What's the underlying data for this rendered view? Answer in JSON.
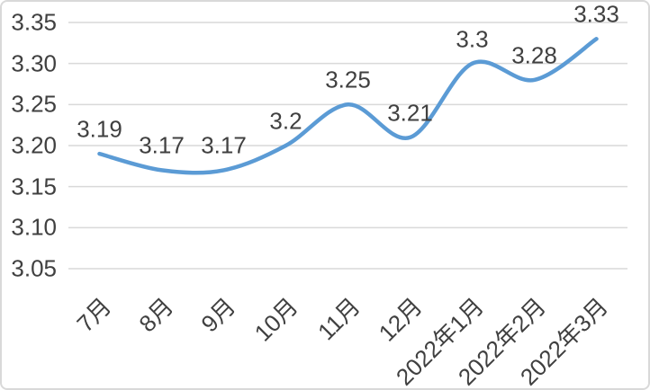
{
  "chart_data": {
    "type": "line",
    "title": "",
    "xlabel": "",
    "ylabel": "",
    "categories": [
      "7月",
      "8月",
      "9月",
      "10月",
      "11月",
      "12月",
      "2022年1月",
      "2022年2月",
      "2022年3月"
    ],
    "values": [
      3.19,
      3.17,
      3.17,
      3.2,
      3.25,
      3.21,
      3.3,
      3.28,
      3.33
    ],
    "point_labels": [
      "3.19",
      "3.17",
      "3.17",
      "3.2",
      "3.25",
      "3.21",
      "3.3",
      "3.28",
      "3.33"
    ],
    "ytick_values": [
      3.05,
      3.1,
      3.15,
      3.2,
      3.25,
      3.3,
      3.35
    ],
    "ytick_labels": [
      "3.05",
      "3.10",
      "3.15",
      "3.20",
      "3.25",
      "3.30",
      "3.35"
    ],
    "ylim": [
      3.05,
      3.35
    ],
    "grid": true,
    "legend": "none",
    "smooth": true,
    "line_color": "#5b9bd5",
    "gridline_color": "#d9d9d9",
    "text_color": "#404040",
    "border_color": "#d9d9d9",
    "background_color": "#ffffff"
  }
}
